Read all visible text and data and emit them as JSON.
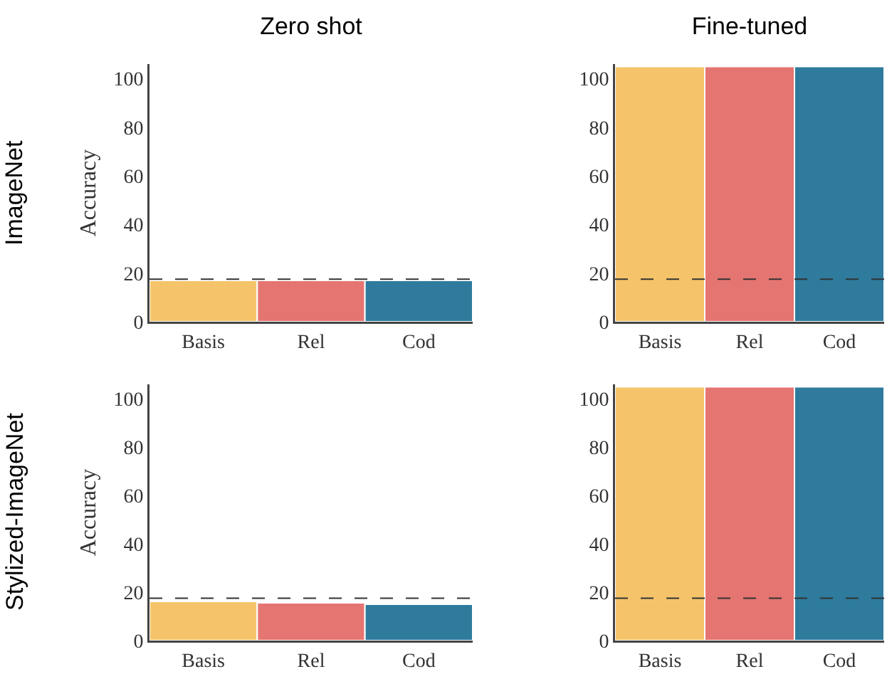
{
  "chart_data": [
    {
      "type": "bar",
      "title": "Zero shot",
      "ylabel": "Accuracy",
      "annotations": [
        "ImageNet"
      ],
      "categories": [
        "Basis",
        "Rel",
        "Cod"
      ],
      "values": [
        17,
        17,
        17
      ],
      "colors": [
        "#f5c46a",
        "#e57571",
        "#2e7b9d"
      ],
      "ylim": [
        0,
        106
      ],
      "yticks": [
        0,
        20,
        40,
        60,
        80,
        100
      ],
      "ref_lines": [
        {
          "axis": "y",
          "value": 17.5,
          "color": "#333333",
          "line_style": "dashed"
        }
      ],
      "grid": false
    },
    {
      "type": "bar",
      "title": "Fine-tuned",
      "categories": [
        "Basis",
        "Rel",
        "Cod"
      ],
      "values": [
        105,
        105,
        105
      ],
      "colors": [
        "#f5c46a",
        "#e57571",
        "#2e7b9d"
      ],
      "ylim": [
        0,
        106
      ],
      "yticks": [
        0,
        20,
        40,
        60,
        80,
        100
      ],
      "ref_lines": [
        {
          "axis": "y",
          "value": 17.5,
          "color": "#333333",
          "line_style": "dashed"
        }
      ],
      "grid": false
    },
    {
      "type": "bar",
      "ylabel": "Accuracy",
      "annotations": [
        "Stylized-ImageNet"
      ],
      "categories": [
        "Basis",
        "Rel",
        "Cod"
      ],
      "values": [
        16.2,
        15.6,
        15
      ],
      "colors": [
        "#f5c46a",
        "#e57571",
        "#2e7b9d"
      ],
      "ylim": [
        0,
        106
      ],
      "yticks": [
        0,
        20,
        40,
        60,
        80,
        100
      ],
      "ref_lines": [
        {
          "axis": "y",
          "value": 17.5,
          "color": "#333333",
          "line_style": "dashed"
        }
      ],
      "grid": false
    },
    {
      "type": "bar",
      "categories": [
        "Basis",
        "Rel",
        "Cod"
      ],
      "values": [
        105,
        105,
        105
      ],
      "colors": [
        "#f5c46a",
        "#e57571",
        "#2e7b9d"
      ],
      "ylim": [
        0,
        106
      ],
      "yticks": [
        0,
        20,
        40,
        60,
        80,
        100
      ],
      "ref_lines": [
        {
          "axis": "y",
          "value": 17.5,
          "color": "#333333",
          "line_style": "dashed"
        }
      ],
      "grid": false
    }
  ]
}
